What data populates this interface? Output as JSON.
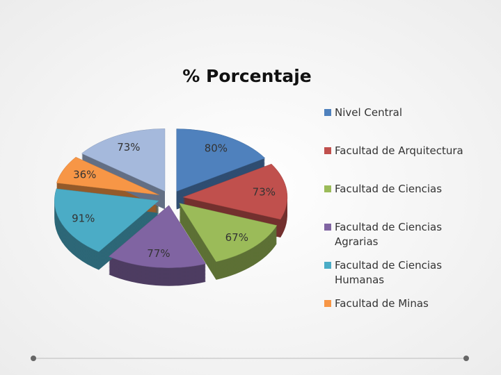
{
  "chart_data": {
    "type": "pie",
    "title": "% Porcentaje",
    "categories": [
      "Nivel Central",
      "Facultad de Arquitectura",
      "Facultad de Ciencias",
      "Facultad de  Ciencias Agrarias",
      "Facultad de Ciencias Humanas",
      "Facultad de Minas",
      null
    ],
    "values": [
      80,
      73,
      67,
      77,
      91,
      36,
      73
    ],
    "value_labels": [
      "80%",
      "73%",
      "67%",
      "77%",
      "91%",
      "36%",
      "73%"
    ],
    "colors": [
      "#4f81bd",
      "#c0504d",
      "#9bbb59",
      "#8064a2",
      "#4bacc6",
      "#f79646",
      "#a5b9dc"
    ],
    "legend": "right"
  }
}
